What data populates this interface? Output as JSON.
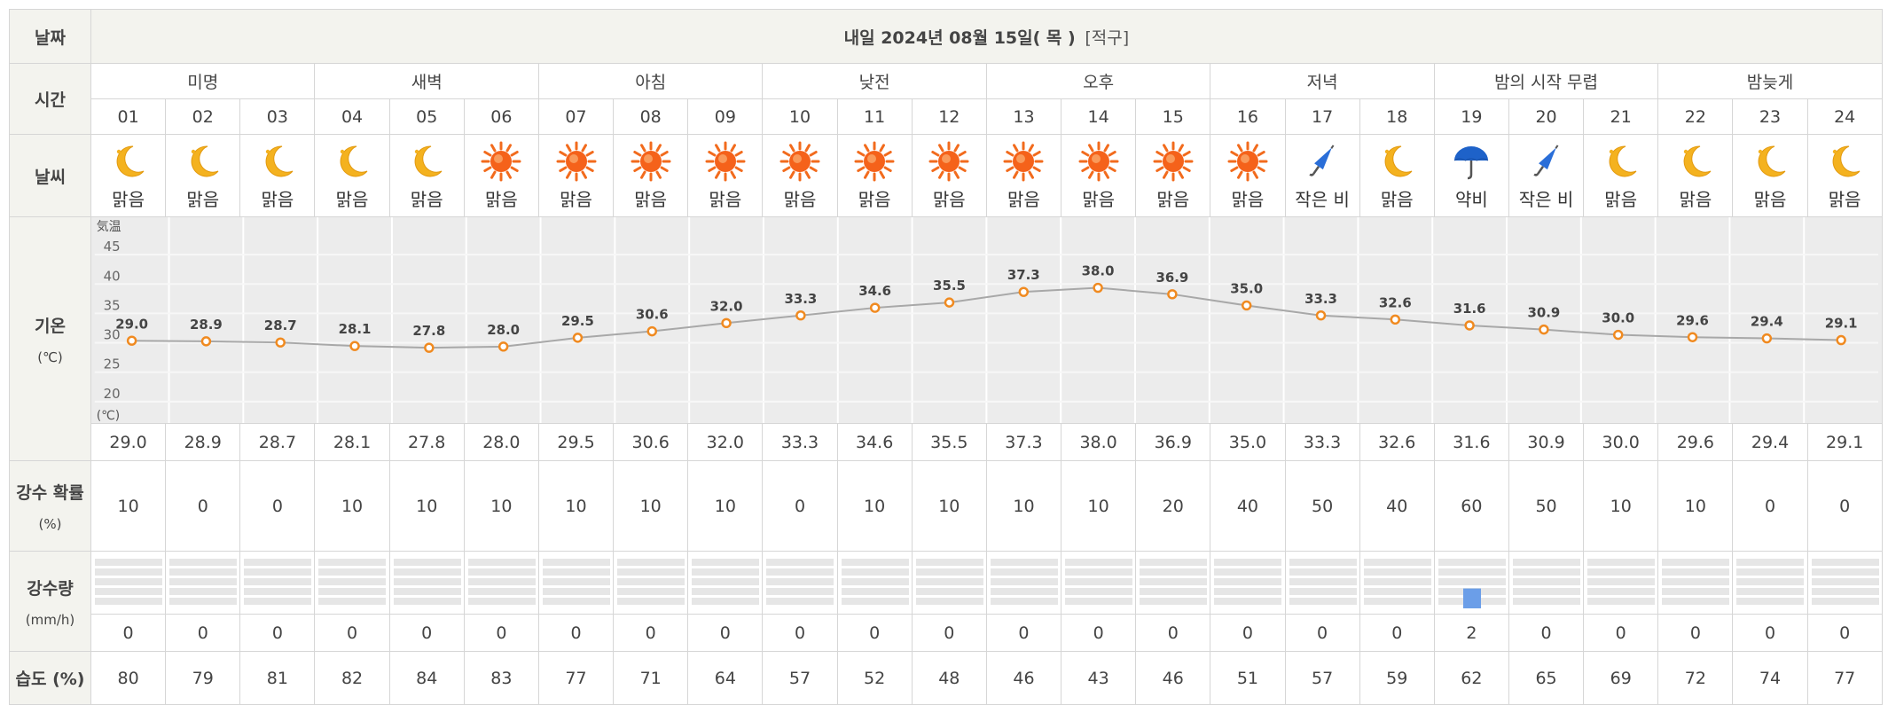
{
  "labels": {
    "date": "날짜",
    "time": "시간",
    "weather": "날씨",
    "temp": "기온",
    "temp_unit": "(℃)",
    "pop": "강수 확률",
    "pop_unit": "(%)",
    "precip": "강수량",
    "precip_unit": "(mm/h)",
    "humidity": "습도 (%)"
  },
  "header": {
    "title": "내일 2024년 08월 15일( 목 )",
    "region": "[적구]"
  },
  "periods": [
    "미명",
    "새벽",
    "아침",
    "낮전",
    "오후",
    "저녁",
    "밤의 시작 무렵",
    "밤늦게"
  ],
  "hours": [
    "01",
    "02",
    "03",
    "04",
    "05",
    "06",
    "07",
    "08",
    "09",
    "10",
    "11",
    "12",
    "13",
    "14",
    "15",
    "16",
    "17",
    "18",
    "19",
    "20",
    "21",
    "22",
    "23",
    "24"
  ],
  "weather": [
    {
      "icon": "moon-icon",
      "text": "맑음"
    },
    {
      "icon": "moon-icon",
      "text": "맑음"
    },
    {
      "icon": "moon-icon",
      "text": "맑음"
    },
    {
      "icon": "moon-icon",
      "text": "맑음"
    },
    {
      "icon": "moon-icon",
      "text": "맑음"
    },
    {
      "icon": "sun-icon",
      "text": "맑음"
    },
    {
      "icon": "sun-icon",
      "text": "맑음"
    },
    {
      "icon": "sun-icon",
      "text": "맑음"
    },
    {
      "icon": "sun-icon",
      "text": "맑음"
    },
    {
      "icon": "sun-icon",
      "text": "맑음"
    },
    {
      "icon": "sun-icon",
      "text": "맑음"
    },
    {
      "icon": "sun-icon",
      "text": "맑음"
    },
    {
      "icon": "sun-icon",
      "text": "맑음"
    },
    {
      "icon": "sun-icon",
      "text": "맑음"
    },
    {
      "icon": "sun-icon",
      "text": "맑음"
    },
    {
      "icon": "sun-icon",
      "text": "맑음"
    },
    {
      "icon": "closed-umbrella-icon",
      "text": "작은 비"
    },
    {
      "icon": "moon-icon",
      "text": "맑음"
    },
    {
      "icon": "umbrella-icon",
      "text": "약비"
    },
    {
      "icon": "closed-umbrella-icon",
      "text": "작은 비"
    },
    {
      "icon": "moon-icon",
      "text": "맑음"
    },
    {
      "icon": "moon-icon",
      "text": "맑음"
    },
    {
      "icon": "moon-icon",
      "text": "맑음"
    },
    {
      "icon": "moon-icon",
      "text": "맑음"
    }
  ],
  "temperature_labels": [
    "29.0",
    "28.9",
    "28.7",
    "28.1",
    "27.8",
    "28.0",
    "29.5",
    "30.6",
    "32.0",
    "33.3",
    "34.6",
    "35.5",
    "37.3",
    "38.0",
    "36.9",
    "35.0",
    "33.3",
    "32.6",
    "31.6",
    "30.9",
    "30.0",
    "29.6",
    "29.4",
    "29.1"
  ],
  "precip_probability": [
    "10",
    "0",
    "0",
    "10",
    "10",
    "10",
    "10",
    "10",
    "10",
    "0",
    "10",
    "10",
    "10",
    "10",
    "20",
    "40",
    "50",
    "40",
    "60",
    "50",
    "10",
    "10",
    "0",
    "0"
  ],
  "precip_amount": [
    "0",
    "0",
    "0",
    "0",
    "0",
    "0",
    "0",
    "0",
    "0",
    "0",
    "0",
    "0",
    "0",
    "0",
    "0",
    "0",
    "0",
    "0",
    "2",
    "0",
    "0",
    "0",
    "0",
    "0"
  ],
  "humidity": [
    "80",
    "79",
    "81",
    "82",
    "84",
    "83",
    "77",
    "71",
    "64",
    "57",
    "52",
    "48",
    "46",
    "43",
    "46",
    "51",
    "57",
    "59",
    "62",
    "65",
    "69",
    "72",
    "74",
    "77"
  ],
  "chart_data": {
    "type": "line",
    "title": "",
    "x": [
      "01",
      "02",
      "03",
      "04",
      "05",
      "06",
      "07",
      "08",
      "09",
      "10",
      "11",
      "12",
      "13",
      "14",
      "15",
      "16",
      "17",
      "18",
      "19",
      "20",
      "21",
      "22",
      "23",
      "24"
    ],
    "series": [
      {
        "values": [
          29.0,
          28.9,
          28.7,
          28.1,
          27.8,
          28.0,
          29.5,
          30.6,
          32.0,
          33.3,
          34.6,
          35.5,
          37.3,
          38.0,
          36.9,
          35.0,
          33.3,
          32.6,
          31.6,
          30.9,
          30.0,
          29.6,
          29.4,
          29.1
        ]
      }
    ],
    "ylim": [
      15,
      50
    ],
    "yticks": [
      "45",
      "40",
      "35",
      "30",
      "25",
      "20"
    ],
    "ylabel_top": "気温",
    "ylabel_bottom": "(℃)",
    "grid": true,
    "colors": {
      "line": "#a8a8a8",
      "marker_stroke": "#f08a20",
      "marker_fill": "#ffffff",
      "bg": "#ececec",
      "grid": "#f7f7f7"
    }
  },
  "precip_chart": {
    "type": "bar",
    "unit": "mm/h",
    "values": [
      0,
      0,
      0,
      0,
      0,
      0,
      0,
      0,
      0,
      0,
      0,
      0,
      0,
      0,
      0,
      0,
      0,
      0,
      2,
      0,
      0,
      0,
      0,
      0
    ],
    "max": 5,
    "bar_color": "#6b9ee8"
  }
}
